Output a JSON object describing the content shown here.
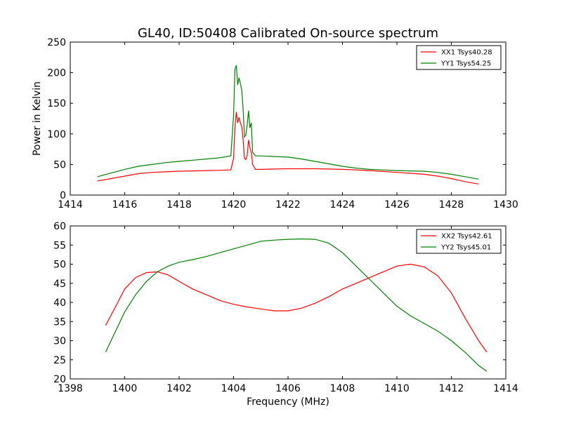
{
  "figure": {
    "title": "GL40, ID:50408 Calibrated On-source spectrum"
  },
  "chart_data": [
    {
      "type": "line",
      "title": "GL40, ID:50408 Calibrated On-source spectrum",
      "xlabel": "",
      "ylabel": "Power in Kelvin",
      "xlim": [
        1414,
        1430
      ],
      "ylim": [
        0,
        250
      ],
      "xticks": [
        1414,
        1416,
        1418,
        1420,
        1422,
        1424,
        1426,
        1428,
        1430
      ],
      "yticks": [
        0,
        50,
        100,
        150,
        200,
        250
      ],
      "grid": false,
      "legend_position": "top-right",
      "series": [
        {
          "name": "XX1 Tsys40.28",
          "color": "#ff0000",
          "x": [
            1415.0,
            1415.5,
            1416.0,
            1416.5,
            1417.0,
            1417.5,
            1418.0,
            1418.5,
            1419.0,
            1419.5,
            1419.9,
            1420.0,
            1420.05,
            1420.1,
            1420.15,
            1420.2,
            1420.25,
            1420.3,
            1420.35,
            1420.4,
            1420.45,
            1420.5,
            1420.55,
            1420.6,
            1420.65,
            1420.7,
            1420.8,
            1421.0,
            1421.5,
            1422.0,
            1422.5,
            1423.0,
            1423.5,
            1424.0,
            1424.5,
            1425.0,
            1425.5,
            1426.0,
            1426.5,
            1427.0,
            1427.5,
            1428.0,
            1428.5,
            1429.0
          ],
          "values": [
            23,
            27,
            31,
            35,
            37,
            38,
            39,
            39.5,
            40,
            40.5,
            41,
            60,
            110,
            136,
            118,
            127,
            118,
            112,
            90,
            60,
            58,
            65,
            90,
            78,
            70,
            50,
            42,
            42,
            42.5,
            43,
            43,
            43,
            42.5,
            42,
            41,
            40,
            38.5,
            37,
            35.5,
            34,
            31,
            27,
            22,
            18
          ]
        },
        {
          "name": "YY1 Tsys54.25",
          "color": "#008000",
          "x": [
            1415.0,
            1415.5,
            1416.0,
            1416.5,
            1417.0,
            1417.5,
            1418.0,
            1418.5,
            1419.0,
            1419.5,
            1419.9,
            1420.0,
            1420.05,
            1420.1,
            1420.15,
            1420.2,
            1420.25,
            1420.3,
            1420.35,
            1420.4,
            1420.45,
            1420.5,
            1420.55,
            1420.6,
            1420.65,
            1420.7,
            1420.8,
            1421.0,
            1421.5,
            1422.0,
            1422.5,
            1423.0,
            1423.5,
            1424.0,
            1424.5,
            1425.0,
            1425.5,
            1426.0,
            1426.5,
            1427.0,
            1427.5,
            1428.0,
            1428.5,
            1429.0
          ],
          "values": [
            30,
            36,
            42,
            47,
            50,
            53,
            55,
            57,
            59,
            61,
            64,
            130,
            205,
            212,
            180,
            192,
            182,
            172,
            140,
            95,
            98,
            115,
            138,
            110,
            118,
            70,
            64,
            64,
            63,
            62,
            59,
            55,
            51,
            47,
            44,
            42,
            41,
            40,
            39.5,
            39,
            37,
            34,
            30,
            26
          ]
        }
      ]
    },
    {
      "type": "line",
      "title": "",
      "xlabel": "Frequency (MHz)",
      "ylabel": "",
      "xlim": [
        1398,
        1414
      ],
      "ylim": [
        20,
        60
      ],
      "xticks": [
        1398,
        1400,
        1402,
        1404,
        1406,
        1408,
        1410,
        1412,
        1414
      ],
      "yticks": [
        20,
        25,
        30,
        35,
        40,
        45,
        50,
        55,
        60
      ],
      "grid": false,
      "legend_position": "top-right",
      "series": [
        {
          "name": "XX2 Tsys42.61",
          "color": "#ff0000",
          "x": [
            1399.3,
            1399.6,
            1400.0,
            1400.4,
            1400.8,
            1401.2,
            1401.6,
            1402.0,
            1402.5,
            1403.0,
            1403.5,
            1404.0,
            1404.5,
            1405.0,
            1405.5,
            1406.0,
            1406.5,
            1407.0,
            1407.5,
            1408.0,
            1408.5,
            1409.0,
            1409.5,
            1410.0,
            1410.5,
            1411.0,
            1411.5,
            1412.0,
            1412.5,
            1413.0,
            1413.3
          ],
          "values": [
            34,
            38,
            43.5,
            46.5,
            47.8,
            48,
            47.2,
            45.5,
            43.5,
            42,
            40.5,
            39.5,
            38.8,
            38.3,
            37.8,
            37.8,
            38.5,
            39.8,
            41.5,
            43.5,
            45,
            46.5,
            48,
            49.5,
            50,
            49.3,
            47,
            42.5,
            36,
            30,
            27
          ]
        },
        {
          "name": "YY2 Tsys45.01",
          "color": "#008000",
          "x": [
            1399.3,
            1399.6,
            1400.0,
            1400.4,
            1400.8,
            1401.2,
            1401.6,
            1402.0,
            1402.5,
            1403.0,
            1403.5,
            1404.0,
            1404.5,
            1405.0,
            1405.5,
            1406.0,
            1406.5,
            1407.0,
            1407.5,
            1408.0,
            1408.5,
            1409.0,
            1409.5,
            1410.0,
            1410.5,
            1411.0,
            1411.5,
            1412.0,
            1412.5,
            1413.0,
            1413.3
          ],
          "values": [
            27,
            31.5,
            37.5,
            42,
            45.5,
            48,
            49.5,
            50.5,
            51.2,
            52,
            53,
            54,
            55,
            56,
            56.3,
            56.5,
            56.6,
            56.5,
            55.5,
            53,
            49.5,
            46,
            42.5,
            39,
            36.5,
            34.5,
            32.5,
            30,
            27,
            23.5,
            22
          ]
        }
      ]
    }
  ]
}
